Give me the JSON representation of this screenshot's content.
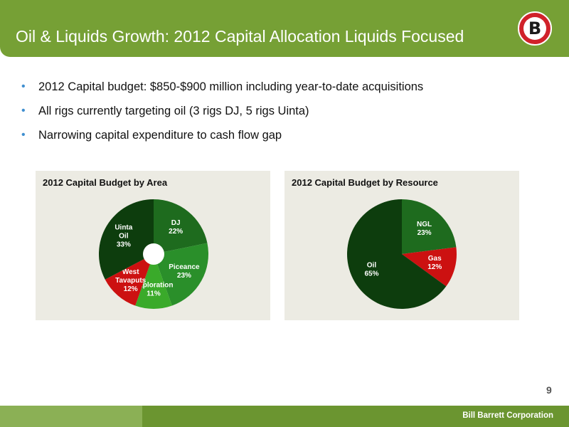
{
  "slide": {
    "title": "Oil & Liquids Growth: 2012 Capital Allocation Liquids Focused",
    "logo_letter": "B",
    "page_number": "9",
    "footer_company": "Bill Barrett Corporation"
  },
  "bullets": [
    "2012 Capital budget: $850-$900 million including year-to-date acquisitions",
    "All rigs currently targeting oil (3 rigs DJ, 5 rigs Uinta)",
    "Narrowing capital expenditure to cash flow gap"
  ],
  "colors": {
    "header_green": "#76a035",
    "dark_green": "#0d3d0d",
    "mid_green": "#1e6b1e",
    "bright_green": "#2a8f2a",
    "light_green": "#3aaa2a",
    "red": "#cc1111"
  },
  "chart_data": [
    {
      "type": "pie",
      "title": "2012 Capital Budget by Area",
      "donut": true,
      "slices": [
        {
          "label": "DJ",
          "value": 22,
          "color": "#1e6b1e"
        },
        {
          "label": "Piceance",
          "value": 23,
          "color": "#2a8f2a"
        },
        {
          "label": "Exploration",
          "value": 11,
          "color": "#3aaa2a"
        },
        {
          "label": "West Tavaputs",
          "value": 12,
          "color": "#cc1111"
        },
        {
          "label": "Uinta Oil",
          "value": 33,
          "color": "#0d3d0d"
        }
      ]
    },
    {
      "type": "pie",
      "title": "2012 Capital Budget by Resource",
      "donut": false,
      "slices": [
        {
          "label": "NGL",
          "value": 23,
          "color": "#1e6b1e"
        },
        {
          "label": "Gas",
          "value": 12,
          "color": "#cc1111"
        },
        {
          "label": "Oil",
          "value": 65,
          "color": "#0d3d0d"
        }
      ]
    }
  ]
}
